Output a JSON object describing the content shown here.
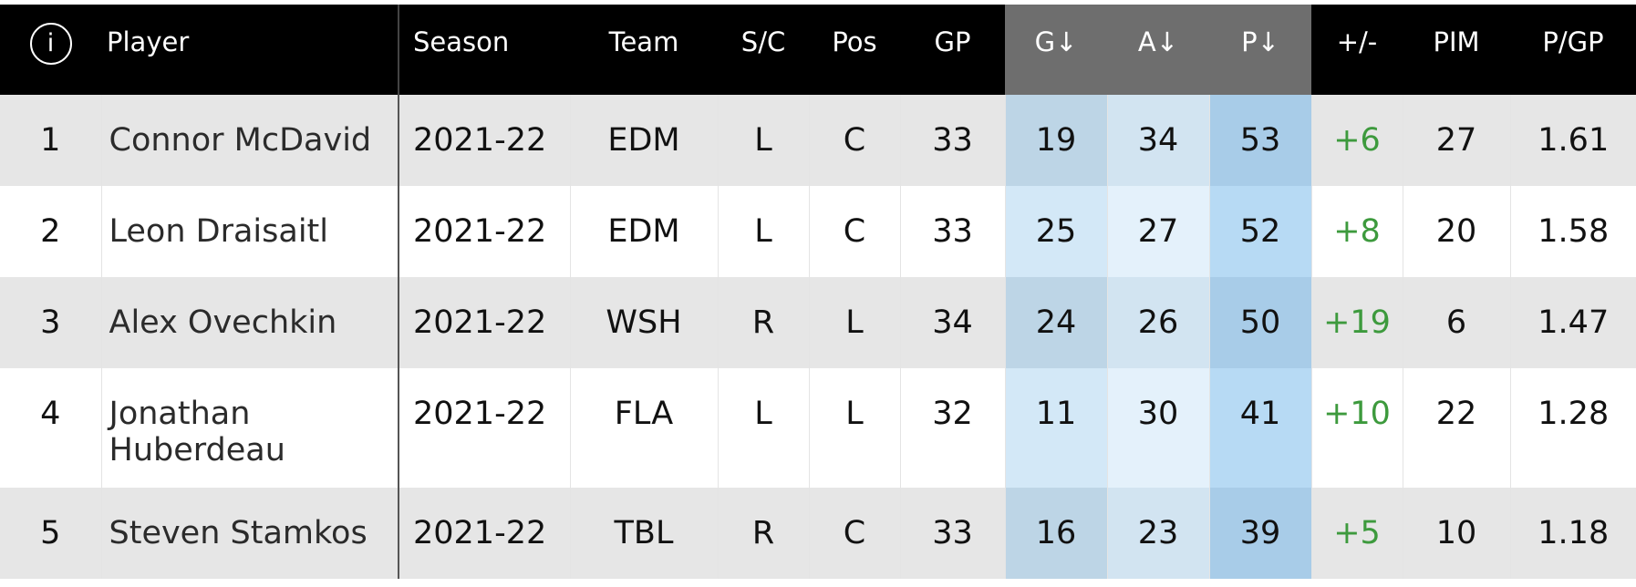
{
  "header": {
    "info_icon": "i",
    "player": "Player",
    "season": "Season",
    "team": "Team",
    "sc": "S/C",
    "pos": "Pos",
    "gp": "GP",
    "g": "G↓",
    "a": "A↓",
    "p": "P↓",
    "plus_minus": "+/-",
    "pim": "PIM",
    "pgp": "P/GP"
  },
  "colors": {
    "header_bg": "#000000",
    "sorted_header_bg": "#6e6e6e",
    "plus_minus_text": "#3d9a3d",
    "highlight_g": "#bdd5e6",
    "highlight_a": "#d2e4f1",
    "highlight_p": "#a8cce8"
  },
  "rows": [
    {
      "rank": "1",
      "player": "Connor McDavid",
      "season": "2021-22",
      "team": "EDM",
      "sc": "L",
      "pos": "C",
      "gp": "33",
      "g": "19",
      "a": "34",
      "p": "53",
      "plus_minus": "+6",
      "pim": "27",
      "pgp": "1.61"
    },
    {
      "rank": "2",
      "player": "Leon Draisaitl",
      "season": "2021-22",
      "team": "EDM",
      "sc": "L",
      "pos": "C",
      "gp": "33",
      "g": "25",
      "a": "27",
      "p": "52",
      "plus_minus": "+8",
      "pim": "20",
      "pgp": "1.58"
    },
    {
      "rank": "3",
      "player": "Alex Ovechkin",
      "season": "2021-22",
      "team": "WSH",
      "sc": "R",
      "pos": "L",
      "gp": "34",
      "g": "24",
      "a": "26",
      "p": "50",
      "plus_minus": "+19",
      "pim": "6",
      "pgp": "1.47"
    },
    {
      "rank": "4",
      "player": "Jonathan Huberdeau",
      "season": "2021-22",
      "team": "FLA",
      "sc": "L",
      "pos": "L",
      "gp": "32",
      "g": "11",
      "a": "30",
      "p": "41",
      "plus_minus": "+10",
      "pim": "22",
      "pgp": "1.28"
    },
    {
      "rank": "5",
      "player": "Steven Stamkos",
      "season": "2021-22",
      "team": "TBL",
      "sc": "R",
      "pos": "C",
      "gp": "33",
      "g": "16",
      "a": "23",
      "p": "39",
      "plus_minus": "+5",
      "pim": "10",
      "pgp": "1.18"
    }
  ]
}
